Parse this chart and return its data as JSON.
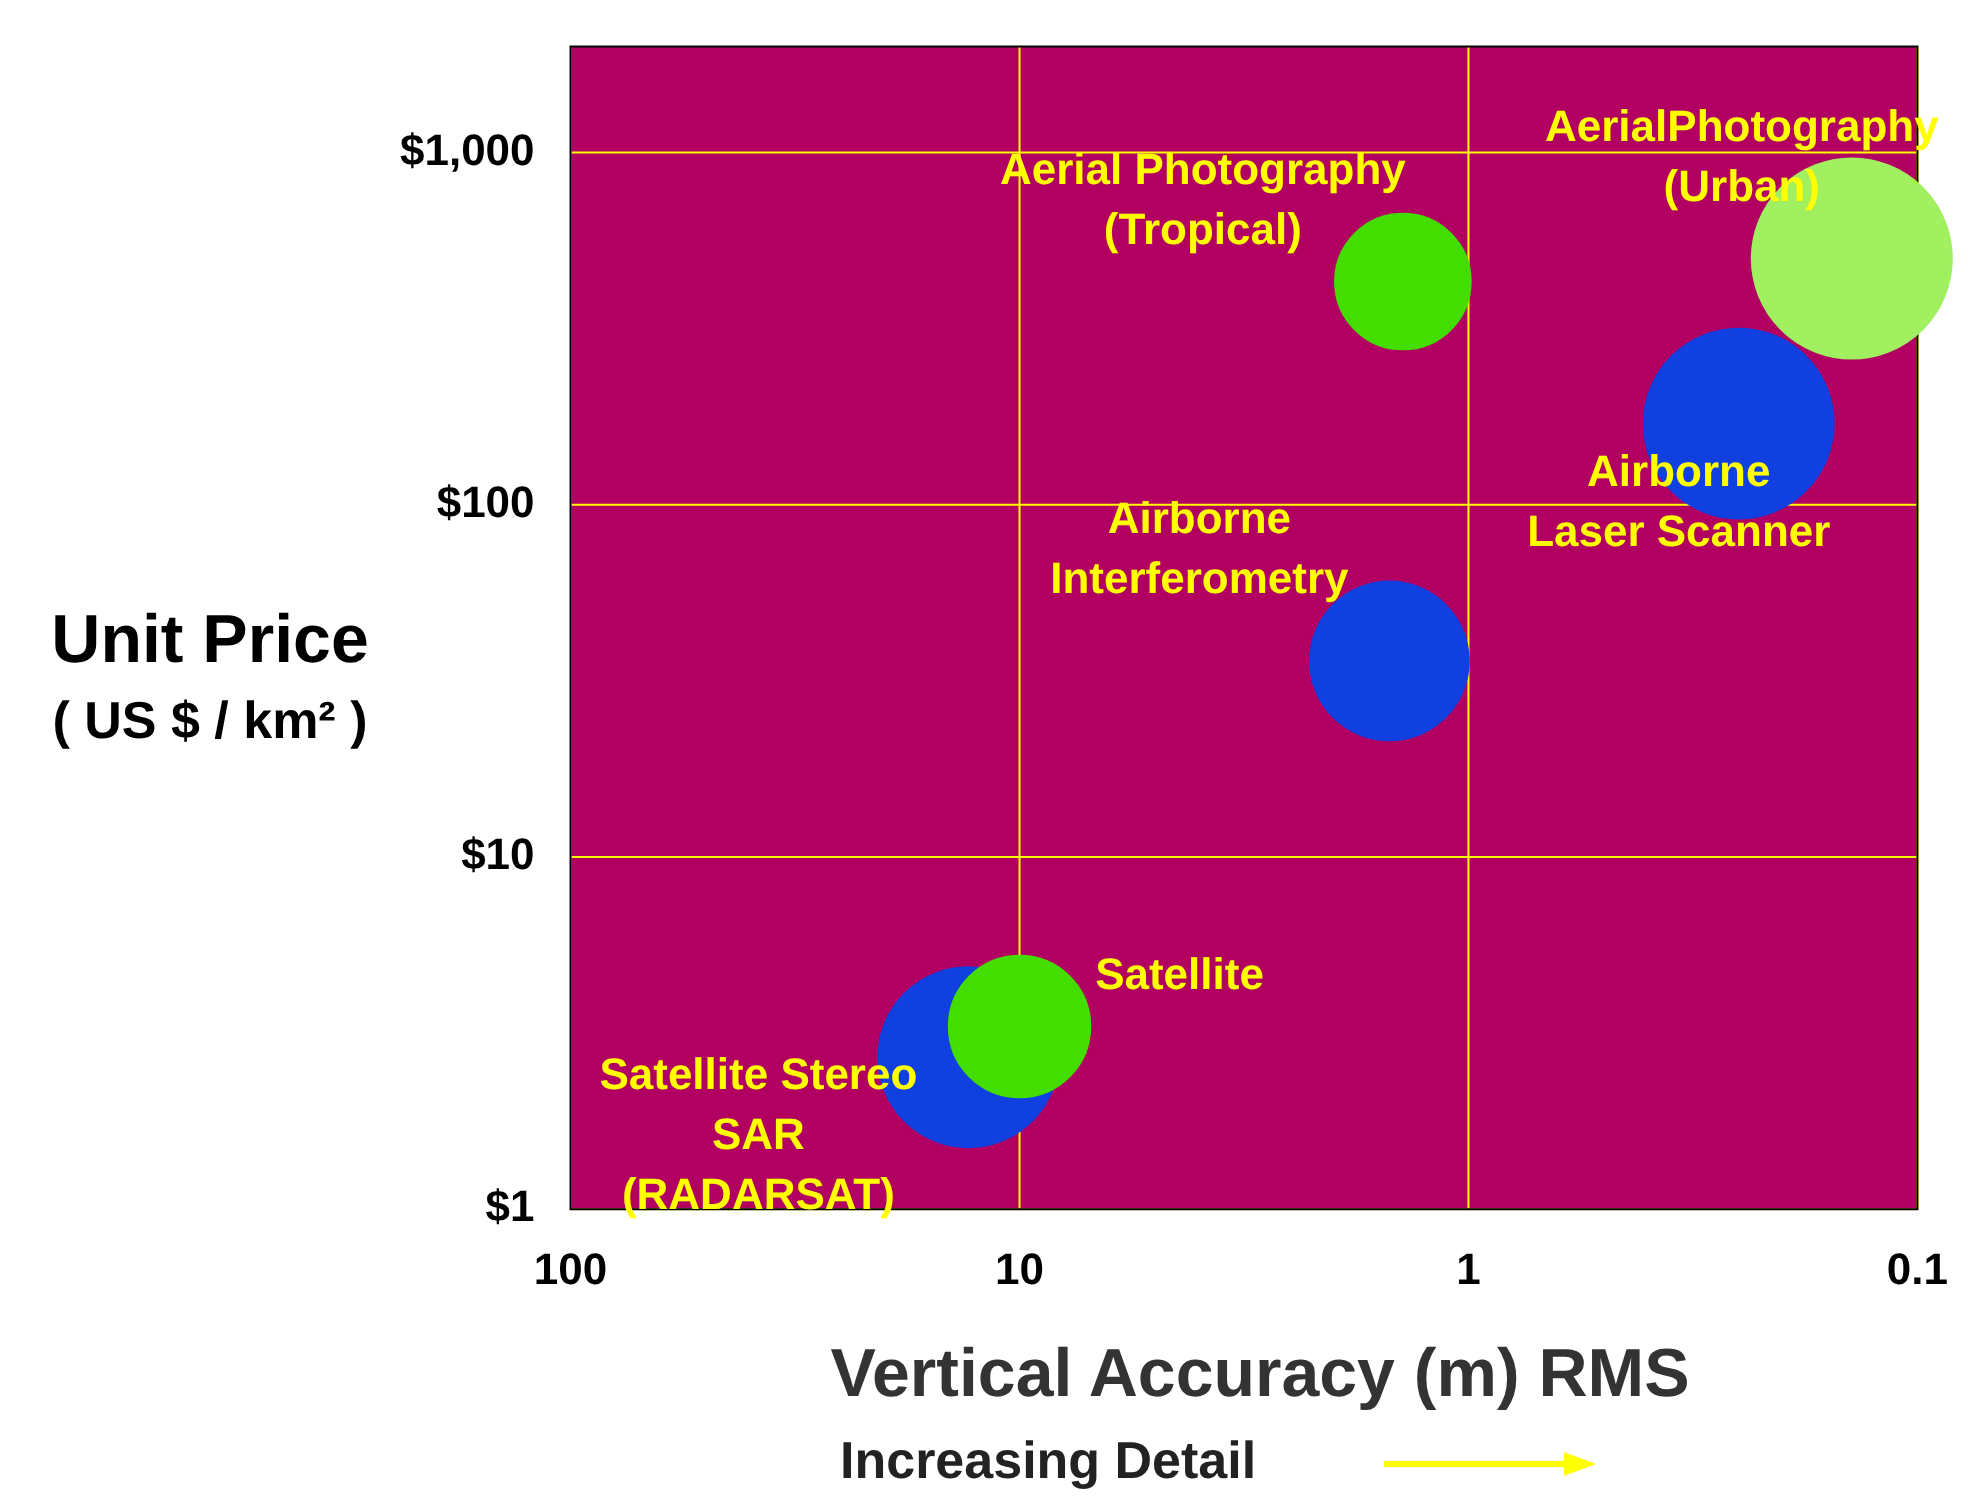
{
  "chart_data": {
    "type": "bubble",
    "xlabel": "Vertical Accuracy (m) RMS",
    "ylabel": "Unit Price\n( US $ / km² )",
    "annotations": [
      "Increasing Detail"
    ],
    "log": "xy",
    "grid": true,
    "legend": false,
    "xlim": [
      100,
      0.1
    ],
    "xticks": [
      100,
      10,
      1,
      0.1
    ],
    "ylim": [
      1,
      2000
    ],
    "yticks": [
      {
        "value": 1,
        "label": "$1"
      },
      {
        "value": 10,
        "label": "$10"
      },
      {
        "value": 100,
        "label": "$100"
      },
      {
        "value": 1000,
        "label": "$1,000"
      }
    ],
    "series": [
      {
        "name": "Aerial Photography\n(Tropical)",
        "color": "#44dd00",
        "x": [
          1.4
        ],
        "values": [
          430
        ],
        "sizes": [
          0.46
        ]
      },
      {
        "name": "AerialPhotography\n(Urban)",
        "color": "#a0f060",
        "x": [
          0.14
        ],
        "values": [
          500
        ],
        "sizes": [
          1
        ]
      },
      {
        "name": "Airborne\nLaser Scanner",
        "color": "#1040e0",
        "x": [
          0.25
        ],
        "values": [
          170
        ],
        "sizes": [
          0.9
        ]
      },
      {
        "name": "Airborne\nInterferometry",
        "color": "#1040e0",
        "x": [
          1.5
        ],
        "values": [
          36
        ],
        "sizes": [
          0.63
        ]
      },
      {
        "name": "Satellite Stereo\nSAR\n(RADARSAT)",
        "color": "#1040e0",
        "x": [
          13
        ],
        "values": [
          2.7
        ],
        "sizes": [
          0.81
        ]
      },
      {
        "name": "Satellite",
        "color": "#44dd00",
        "x": [
          10
        ],
        "values": [
          3.3
        ],
        "sizes": [
          0.5
        ]
      }
    ]
  }
}
